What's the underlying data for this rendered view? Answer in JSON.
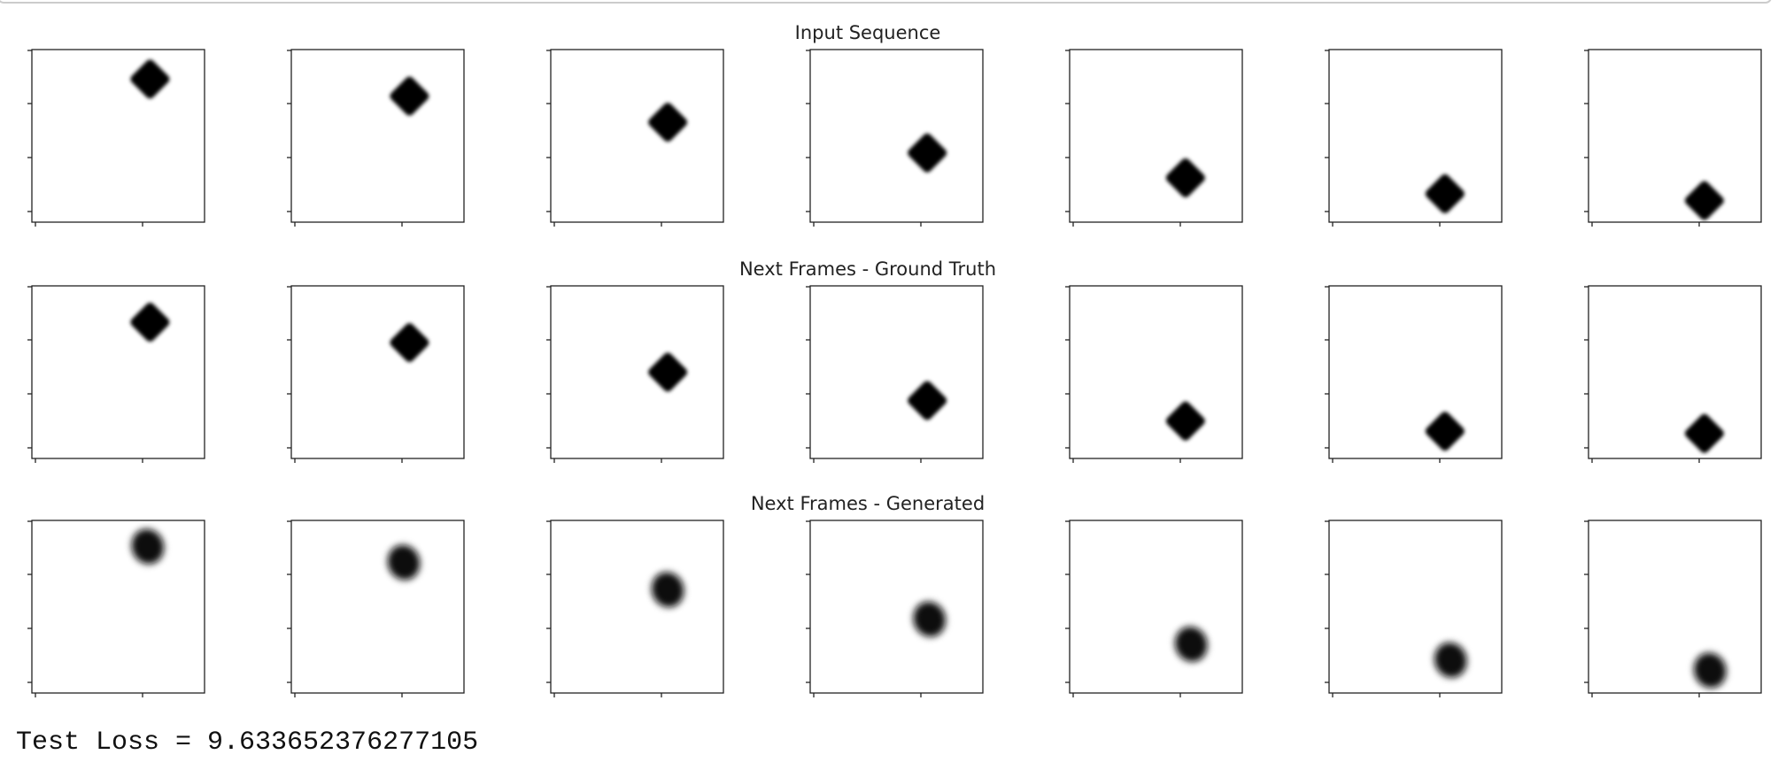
{
  "figure": {
    "rows": [
      {
        "title": "Input Sequence"
      },
      {
        "title": "Next Frames - Ground Truth"
      },
      {
        "title": "Next Frames - Generated"
      }
    ]
  },
  "output": {
    "text": "Test Loss = 9.633652376277105"
  }
}
